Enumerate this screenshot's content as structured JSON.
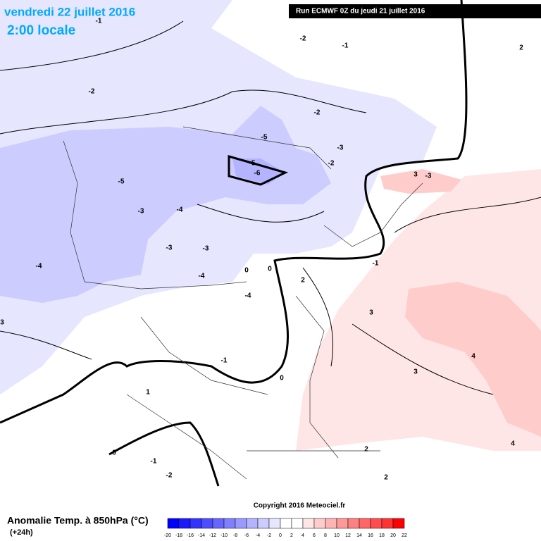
{
  "header": {
    "title": "vendredi 22 juillet 2016",
    "subtitle": "2:00 locale",
    "run": "Run ECMWF 0Z du jeudi 21 juillet 2016"
  },
  "footer": {
    "legend_title": "Anomalie Temp. à 850hPa (°C)",
    "lead": "(+24h)",
    "copyright": "Copyright 2016 Meteociel.fr"
  },
  "color_scale": {
    "ticks": [
      -20,
      -18,
      -16,
      -14,
      -12,
      -10,
      -8,
      -6,
      -4,
      -2,
      0,
      2,
      4,
      6,
      8,
      10,
      12,
      14,
      16,
      18,
      20,
      22
    ],
    "colors": [
      "#0000ff",
      "#1a1aff",
      "#3333ff",
      "#4d4dff",
      "#6666ff",
      "#8080ff",
      "#9999ff",
      "#b3b3ff",
      "#ccccff",
      "#e6e6ff",
      "#ffffff",
      "#ffffff",
      "#ffe6e6",
      "#ffcccc",
      "#ffb3b3",
      "#ff9999",
      "#ff8080",
      "#ff6666",
      "#ff4d4d",
      "#ff3333",
      "#ff0000"
    ]
  },
  "contour_labels": [
    -2,
    -2,
    -2,
    -2,
    -1,
    -1,
    2,
    2,
    2,
    2,
    -5,
    -5,
    -5,
    -6,
    -3,
    -3,
    -3,
    -3,
    -3,
    -4,
    -4,
    -4,
    -4,
    1,
    0,
    0,
    0,
    0,
    -1,
    -1,
    -1,
    -2,
    3,
    3,
    3,
    3,
    4,
    4
  ]
}
